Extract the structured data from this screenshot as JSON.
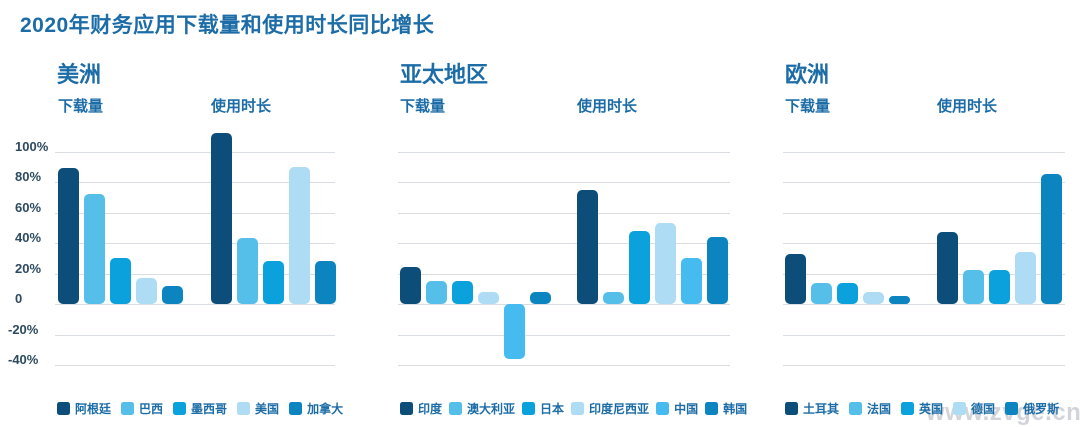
{
  "title": "2020年财务应用下载量和使用时长同比增长",
  "watermark": "www.zvge.cn",
  "y_axis": {
    "tick_labels": [
      "100%",
      "80%",
      "60%",
      "40%",
      "20%",
      "0",
      "-20%",
      "-40%"
    ],
    "tick_values": [
      100,
      80,
      60,
      40,
      20,
      0,
      -20,
      -40
    ]
  },
  "colors": {
    "title_text": "#1c6ca7",
    "axis_text": "#2c4a60",
    "gridline": "#dadde2",
    "watermark_text": "#cdd1d6",
    "background": "#ffffff"
  },
  "chart_data": [
    {
      "type": "bar",
      "region": "美洲",
      "categories": [
        "阿根廷",
        "巴西",
        "墨西哥",
        "美国",
        "加拿大"
      ],
      "bar_colors": [
        "#0c4d7a",
        "#55bfe9",
        "#0aa1dc",
        "#aedcf4",
        "#0c84c0"
      ],
      "series": [
        {
          "name": "下载量",
          "values": [
            89,
            72,
            30,
            17,
            12
          ]
        },
        {
          "name": "使用时长",
          "values": [
            112,
            43,
            28,
            90,
            28
          ]
        }
      ],
      "unit": "%",
      "ylim": [
        -40,
        112
      ],
      "grid": true,
      "legend_position": "bottom"
    },
    {
      "type": "bar",
      "region": "亚太地区",
      "categories": [
        "印度",
        "澳大利亚",
        "日本",
        "印度尼西亚",
        "中国",
        "韩国"
      ],
      "bar_colors": [
        "#0c4d7a",
        "#55bfe9",
        "#0aa1dc",
        "#aedcf4",
        "#45bbf0",
        "#0c84c0"
      ],
      "series": [
        {
          "name": "下载量",
          "values": [
            24,
            15,
            15,
            8,
            -36,
            8
          ]
        },
        {
          "name": "使用时长",
          "values": [
            75,
            8,
            48,
            53,
            30,
            44
          ]
        }
      ],
      "unit": "%",
      "ylim": [
        -40,
        112
      ],
      "grid": true,
      "legend_position": "bottom"
    },
    {
      "type": "bar",
      "region": "欧洲",
      "categories": [
        "土耳其",
        "法国",
        "英国",
        "德国",
        "俄罗斯"
      ],
      "bar_colors": [
        "#0c4d7a",
        "#55bfe9",
        "#0aa1dc",
        "#aedcf4",
        "#0c84c0"
      ],
      "series": [
        {
          "name": "下载量",
          "values": [
            33,
            14,
            14,
            8,
            5
          ]
        },
        {
          "name": "使用时长",
          "values": [
            47,
            22,
            22,
            34,
            85
          ]
        }
      ],
      "unit": "%",
      "ylim": [
        -40,
        112
      ],
      "grid": true,
      "legend_position": "bottom"
    }
  ]
}
